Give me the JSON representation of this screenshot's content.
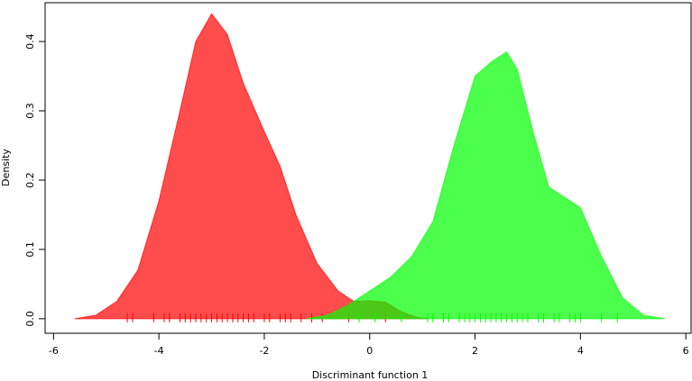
{
  "chart_data": {
    "type": "density",
    "xlabel": "Discriminant function 1",
    "ylabel": "Density",
    "xlim": [
      -6.16,
      6.1
    ],
    "ylim": [
      -0.021,
      0.456
    ],
    "xticks": [
      -6,
      -4,
      -2,
      0,
      2,
      4,
      6
    ],
    "yticks": [
      {
        "value": 0,
        "label": "0.0"
      },
      0.1,
      0.2,
      0.3,
      0.4
    ],
    "opacity": 0.7,
    "series": [
      {
        "color": "#ff0000",
        "x": [
          -5.6,
          -5.2,
          -4.8,
          -4.4,
          -4.0,
          -3.6,
          -3.3,
          -3.0,
          -2.7,
          -2.4,
          -2.0,
          -1.7,
          -1.4,
          -1.0,
          -0.6,
          -0.3,
          0,
          0.3,
          0.6,
          0.9,
          1.1
        ],
        "values": [
          0,
          0.005,
          0.025,
          0.07,
          0.17,
          0.3,
          0.4,
          0.44,
          0.41,
          0.34,
          0.27,
          0.22,
          0.15,
          0.08,
          0.04,
          0.025,
          0.026,
          0.024,
          0.01,
          0.002,
          0
        ],
        "rug": [
          -4.6,
          -4.5,
          -4.1,
          -3.9,
          -3.8,
          -3.6,
          -3.5,
          -3.4,
          -3.3,
          -3.2,
          -3.1,
          -3.0,
          -2.9,
          -2.8,
          -2.7,
          -2.6,
          -2.5,
          -2.4,
          -2.3,
          -2.2,
          -2.0,
          -1.9,
          -1.7,
          -1.6,
          -1.5,
          -1.3,
          -1.1,
          -0.9,
          -0.4,
          0.3
        ]
      },
      {
        "color": "#00ff00",
        "x": [
          -1.2,
          -0.8,
          -0.4,
          0,
          0.4,
          0.8,
          1.2,
          1.6,
          2.0,
          2.3,
          2.6,
          2.8,
          3.1,
          3.4,
          3.7,
          4.0,
          4.4,
          4.8,
          5.2,
          5.6
        ],
        "values": [
          0,
          0.005,
          0.02,
          0.04,
          0.06,
          0.09,
          0.14,
          0.25,
          0.35,
          0.37,
          0.385,
          0.36,
          0.27,
          0.19,
          0.175,
          0.16,
          0.09,
          0.03,
          0.005,
          0
        ],
        "rug": [
          -0.2,
          0.1,
          0.6,
          1.1,
          1.2,
          1.4,
          1.5,
          1.7,
          1.8,
          1.9,
          2.0,
          2.1,
          2.2,
          2.3,
          2.4,
          2.5,
          2.6,
          2.7,
          2.8,
          2.9,
          3.0,
          3.2,
          3.3,
          3.5,
          3.6,
          3.8,
          3.9,
          4.0,
          4.4,
          4.7
        ]
      }
    ]
  }
}
